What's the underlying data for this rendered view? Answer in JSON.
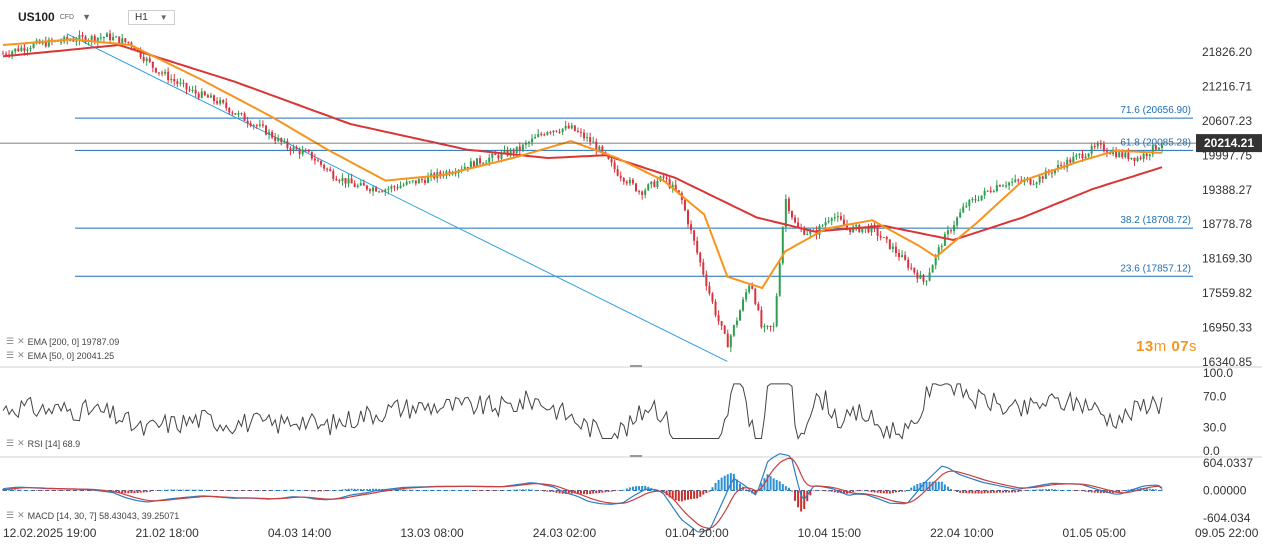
{
  "header": {
    "symbol": "US100",
    "instrument_type": "CFD",
    "timeframe": "H1"
  },
  "indicators": {
    "ema200": "EMA [200, 0] 19787.09",
    "ema50": "EMA [50, 0] 20041.25",
    "rsi": "RSI [14] 68.9",
    "macd": "MACD [14, 30, 7] 58.43043, 39.25071"
  },
  "countdown": {
    "minutes": "13",
    "min_unit": "m",
    "seconds": "07",
    "sec_unit": "s"
  },
  "colors": {
    "price": "#3a3a3a",
    "bull_candle": "#2e9e4f",
    "bear_candle": "#d9333f",
    "ema200": "#d93535",
    "ema50": "#f7941d",
    "fib_line": "#1f6fb5",
    "trend_line": "#2f9fe0",
    "rsi": "#444444",
    "macd_line": "#2c7fc4",
    "signal_line": "#c94040",
    "last_price_label": "#333333"
  },
  "chart_data": [
    {
      "type": "line",
      "name": "US100 H1 price",
      "x": [
        "12.02.2025 19:00",
        "21.02 18:00",
        "04.03 14:00",
        "13.03 08:00",
        "24.03 02:00",
        "01.04 20:00",
        "10.04 15:00",
        "22.04 10:00",
        "01.05 05:00",
        "09.05 22:00"
      ],
      "x_ticks": [
        "12.02.2025  19:00",
        "21.02  18:00",
        "04.03  14:00",
        "13.03  08:00",
        "24.03  02:00",
        "01.04  20:00",
        "10.04  15:00",
        "22.04  10:00",
        "01.05  05:00",
        "09.05  22:00"
      ],
      "y_ticks": [
        "21826.20",
        "21216.71",
        "20607.23",
        "19997.75",
        "19388.27",
        "18778.78",
        "18169.30",
        "17559.82",
        "16950.33",
        "16340.85"
      ],
      "ylim": [
        16340.85,
        22100
      ],
      "last_price": "20214.21",
      "price_points": [
        {
          "t": 0,
          "v": 21800
        },
        {
          "t": 0.025,
          "v": 21950
        },
        {
          "t": 0.06,
          "v": 22050
        },
        {
          "t": 0.09,
          "v": 22100
        },
        {
          "t": 0.11,
          "v": 21980
        },
        {
          "t": 0.13,
          "v": 21550
        },
        {
          "t": 0.16,
          "v": 21150
        },
        {
          "t": 0.185,
          "v": 20950
        },
        {
          "t": 0.2,
          "v": 20750
        },
        {
          "t": 0.225,
          "v": 20450
        },
        {
          "t": 0.245,
          "v": 20150
        },
        {
          "t": 0.265,
          "v": 20000
        },
        {
          "t": 0.285,
          "v": 19650
        },
        {
          "t": 0.305,
          "v": 19450
        },
        {
          "t": 0.33,
          "v": 19400
        },
        {
          "t": 0.36,
          "v": 19550
        },
        {
          "t": 0.39,
          "v": 19750
        },
        {
          "t": 0.42,
          "v": 19950
        },
        {
          "t": 0.445,
          "v": 20100
        },
        {
          "t": 0.47,
          "v": 20450
        },
        {
          "t": 0.49,
          "v": 20480
        },
        {
          "t": 0.51,
          "v": 20200
        },
        {
          "t": 0.53,
          "v": 19700
        },
        {
          "t": 0.55,
          "v": 19350
        },
        {
          "t": 0.57,
          "v": 19600
        },
        {
          "t": 0.585,
          "v": 19250
        },
        {
          "t": 0.6,
          "v": 18200
        },
        {
          "t": 0.615,
          "v": 17200
        },
        {
          "t": 0.625,
          "v": 16650
        },
        {
          "t": 0.635,
          "v": 17200
        },
        {
          "t": 0.645,
          "v": 17800
        },
        {
          "t": 0.655,
          "v": 16900
        },
        {
          "t": 0.665,
          "v": 16950
        },
        {
          "t": 0.675,
          "v": 19250
        },
        {
          "t": 0.685,
          "v": 18700
        },
        {
          "t": 0.7,
          "v": 18600
        },
        {
          "t": 0.715,
          "v": 18950
        },
        {
          "t": 0.73,
          "v": 18700
        },
        {
          "t": 0.75,
          "v": 18700
        },
        {
          "t": 0.77,
          "v": 18300
        },
        {
          "t": 0.795,
          "v": 17750
        },
        {
          "t": 0.81,
          "v": 18450
        },
        {
          "t": 0.83,
          "v": 19100
        },
        {
          "t": 0.86,
          "v": 19500
        },
        {
          "t": 0.89,
          "v": 19550
        },
        {
          "t": 0.92,
          "v": 19900
        },
        {
          "t": 0.945,
          "v": 20150
        },
        {
          "t": 0.965,
          "v": 20000
        },
        {
          "t": 0.98,
          "v": 19950
        },
        {
          "t": 1.0,
          "v": 20214
        }
      ],
      "ema200_points": [
        {
          "t": 0,
          "v": 21750
        },
        {
          "t": 0.1,
          "v": 21950
        },
        {
          "t": 0.2,
          "v": 21300
        },
        {
          "t": 0.3,
          "v": 20550
        },
        {
          "t": 0.4,
          "v": 20100
        },
        {
          "t": 0.47,
          "v": 19950
        },
        {
          "t": 0.52,
          "v": 20000
        },
        {
          "t": 0.58,
          "v": 19600
        },
        {
          "t": 0.65,
          "v": 18900
        },
        {
          "t": 0.7,
          "v": 18650
        },
        {
          "t": 0.76,
          "v": 18750
        },
        {
          "t": 0.82,
          "v": 18500
        },
        {
          "t": 0.88,
          "v": 18900
        },
        {
          "t": 0.94,
          "v": 19400
        },
        {
          "t": 1.0,
          "v": 19787
        }
      ],
      "ema50_points": [
        {
          "t": 0,
          "v": 21950
        },
        {
          "t": 0.06,
          "v": 22050
        },
        {
          "t": 0.11,
          "v": 21950
        },
        {
          "t": 0.17,
          "v": 21350
        },
        {
          "t": 0.23,
          "v": 20700
        },
        {
          "t": 0.28,
          "v": 20100
        },
        {
          "t": 0.33,
          "v": 19550
        },
        {
          "t": 0.38,
          "v": 19650
        },
        {
          "t": 0.44,
          "v": 19950
        },
        {
          "t": 0.49,
          "v": 20250
        },
        {
          "t": 0.53,
          "v": 19950
        },
        {
          "t": 0.57,
          "v": 19550
        },
        {
          "t": 0.605,
          "v": 18950
        },
        {
          "t": 0.625,
          "v": 17850
        },
        {
          "t": 0.655,
          "v": 17650
        },
        {
          "t": 0.675,
          "v": 18300
        },
        {
          "t": 0.71,
          "v": 18700
        },
        {
          "t": 0.75,
          "v": 18850
        },
        {
          "t": 0.79,
          "v": 18400
        },
        {
          "t": 0.805,
          "v": 18200
        },
        {
          "t": 0.84,
          "v": 18800
        },
        {
          "t": 0.88,
          "v": 19550
        },
        {
          "t": 0.93,
          "v": 19900
        },
        {
          "t": 0.96,
          "v": 20080
        },
        {
          "t": 1.0,
          "v": 20041
        }
      ],
      "trend_line": {
        "start": {
          "t": 0.055,
          "v": 22150
        },
        "end": {
          "t": 0.625,
          "v": 16350
        }
      },
      "fib_levels": [
        {
          "label": "71.6 (20656.90)",
          "value": 20656.9
        },
        {
          "label": "61.8 (20085.28)",
          "value": 20085.28
        },
        {
          "label": "38.2 (18708.72)",
          "value": 18708.72
        },
        {
          "label": "23.6 (17857.12)",
          "value": 17857.12
        }
      ]
    },
    {
      "type": "line",
      "name": "RSI [14]",
      "ylim": [
        0,
        100
      ],
      "y_ticks": [
        "100.0",
        "70.0",
        "30.0",
        "0.0"
      ],
      "tick_values": [
        100,
        70,
        30,
        0
      ],
      "last_value": 68.9
    },
    {
      "type": "line",
      "name": "MACD [14, 30, 7]",
      "y_ticks": [
        "604.0337",
        "0.00000",
        "-604.034"
      ],
      "tick_values": [
        604.0337,
        0,
        -604.034
      ],
      "ylim": [
        -604.034,
        604.0337
      ],
      "macd": 58.43043,
      "signal": 39.25071
    }
  ]
}
